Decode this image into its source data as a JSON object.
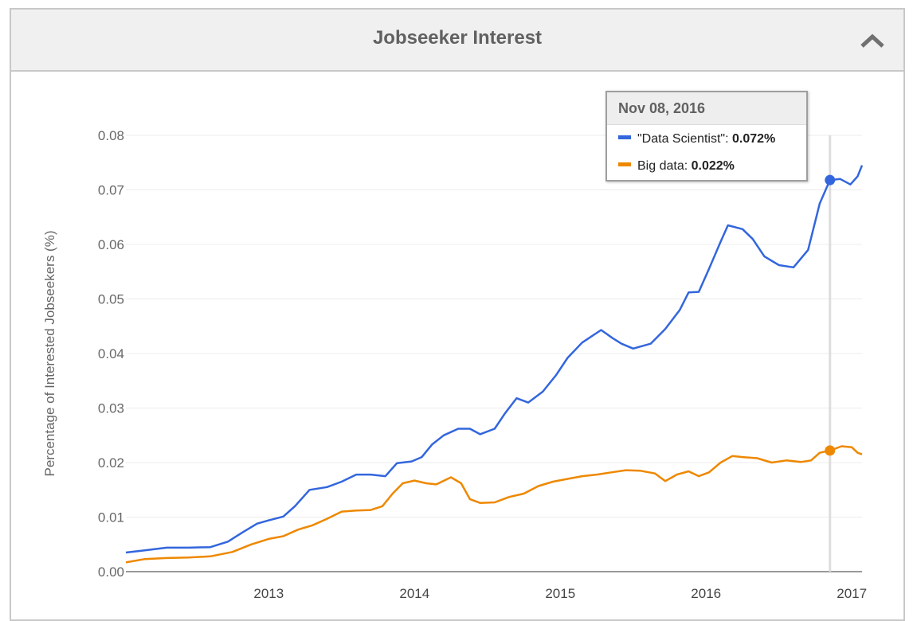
{
  "panel": {
    "title": "Jobseeker Interest",
    "collapse_icon": "chevron-up-icon"
  },
  "tooltip": {
    "date": "Nov 08, 2016",
    "rows": [
      {
        "name": "\"Data Scientist\"",
        "sep": ":",
        "value": "0.072%",
        "color": "#3366dd"
      },
      {
        "name": "Big data",
        "sep": ":",
        "value": "0.022%",
        "color": "#ee8800"
      }
    ]
  },
  "chart_data": {
    "type": "line",
    "ylabel": "Percentage of Interested Jobseekers (%)",
    "xlabel": "",
    "ylim": [
      0,
      0.08
    ],
    "yticks": [
      0.0,
      0.01,
      0.02,
      0.03,
      0.04,
      0.05,
      0.06,
      0.07,
      0.08
    ],
    "ytick_labels": [
      "0.00",
      "0.01",
      "0.02",
      "0.03",
      "0.04",
      "0.05",
      "0.06",
      "0.07",
      "0.08"
    ],
    "xlim": [
      2012.02,
      2017.07
    ],
    "xticks": [
      2013,
      2014,
      2015,
      2016,
      2017
    ],
    "xtick_labels": [
      "2013",
      "2014",
      "2015",
      "2016",
      "2017"
    ],
    "grid": true,
    "highlight_x": 2016.85,
    "series": [
      {
        "name": "\"Data Scientist\"",
        "color": "#3366dd",
        "points": [
          [
            2012.02,
            0.0035
          ],
          [
            2012.15,
            0.0039
          ],
          [
            2012.3,
            0.0044
          ],
          [
            2012.45,
            0.0044
          ],
          [
            2012.6,
            0.0045
          ],
          [
            2012.72,
            0.0055
          ],
          [
            2012.82,
            0.0072
          ],
          [
            2012.92,
            0.0088
          ],
          [
            2013.0,
            0.0094
          ],
          [
            2013.1,
            0.0101
          ],
          [
            2013.18,
            0.012
          ],
          [
            2013.28,
            0.015
          ],
          [
            2013.4,
            0.0155
          ],
          [
            2013.5,
            0.0165
          ],
          [
            2013.6,
            0.0178
          ],
          [
            2013.7,
            0.0178
          ],
          [
            2013.8,
            0.0175
          ],
          [
            2013.88,
            0.0199
          ],
          [
            2013.98,
            0.0202
          ],
          [
            2014.05,
            0.021
          ],
          [
            2014.12,
            0.0233
          ],
          [
            2014.2,
            0.025
          ],
          [
            2014.3,
            0.0262
          ],
          [
            2014.38,
            0.0262
          ],
          [
            2014.45,
            0.0252
          ],
          [
            2014.55,
            0.0262
          ],
          [
            2014.62,
            0.029
          ],
          [
            2014.7,
            0.0318
          ],
          [
            2014.78,
            0.031
          ],
          [
            2014.88,
            0.033
          ],
          [
            2014.97,
            0.036
          ],
          [
            2015.05,
            0.0392
          ],
          [
            2015.15,
            0.042
          ],
          [
            2015.28,
            0.0443
          ],
          [
            2015.36,
            0.0428
          ],
          [
            2015.42,
            0.0418
          ],
          [
            2015.5,
            0.0409
          ],
          [
            2015.62,
            0.0418
          ],
          [
            2015.72,
            0.0445
          ],
          [
            2015.82,
            0.048
          ],
          [
            2015.88,
            0.0512
          ],
          [
            2015.95,
            0.0513
          ],
          [
            2016.02,
            0.0555
          ],
          [
            2016.1,
            0.0605
          ],
          [
            2016.15,
            0.0635
          ],
          [
            2016.25,
            0.0628
          ],
          [
            2016.32,
            0.061
          ],
          [
            2016.4,
            0.0578
          ],
          [
            2016.5,
            0.0562
          ],
          [
            2016.6,
            0.0558
          ],
          [
            2016.7,
            0.059
          ],
          [
            2016.78,
            0.0675
          ],
          [
            2016.85,
            0.0718
          ],
          [
            2016.92,
            0.072
          ],
          [
            2016.99,
            0.071
          ],
          [
            2017.04,
            0.0725
          ],
          [
            2017.07,
            0.0745
          ]
        ]
      },
      {
        "name": "Big data",
        "color": "#ee8800",
        "points": [
          [
            2012.02,
            0.0017
          ],
          [
            2012.15,
            0.0023
          ],
          [
            2012.3,
            0.0025
          ],
          [
            2012.45,
            0.0026
          ],
          [
            2012.6,
            0.0028
          ],
          [
            2012.75,
            0.0036
          ],
          [
            2012.88,
            0.005
          ],
          [
            2013.0,
            0.006
          ],
          [
            2013.1,
            0.0065
          ],
          [
            2013.2,
            0.0077
          ],
          [
            2013.3,
            0.0085
          ],
          [
            2013.4,
            0.0097
          ],
          [
            2013.5,
            0.011
          ],
          [
            2013.6,
            0.0112
          ],
          [
            2013.7,
            0.0113
          ],
          [
            2013.78,
            0.012
          ],
          [
            2013.85,
            0.0143
          ],
          [
            2013.92,
            0.0162
          ],
          [
            2014.0,
            0.0167
          ],
          [
            2014.08,
            0.0162
          ],
          [
            2014.15,
            0.016
          ],
          [
            2014.25,
            0.0173
          ],
          [
            2014.32,
            0.0162
          ],
          [
            2014.38,
            0.0133
          ],
          [
            2014.45,
            0.0126
          ],
          [
            2014.55,
            0.0127
          ],
          [
            2014.65,
            0.0137
          ],
          [
            2014.75,
            0.0143
          ],
          [
            2014.85,
            0.0157
          ],
          [
            2014.95,
            0.0165
          ],
          [
            2015.05,
            0.017
          ],
          [
            2015.15,
            0.0175
          ],
          [
            2015.25,
            0.0178
          ],
          [
            2015.35,
            0.0182
          ],
          [
            2015.45,
            0.0186
          ],
          [
            2015.55,
            0.0185
          ],
          [
            2015.65,
            0.018
          ],
          [
            2015.72,
            0.0166
          ],
          [
            2015.8,
            0.0178
          ],
          [
            2015.88,
            0.0184
          ],
          [
            2015.95,
            0.0175
          ],
          [
            2016.02,
            0.0182
          ],
          [
            2016.1,
            0.02
          ],
          [
            2016.18,
            0.0212
          ],
          [
            2016.25,
            0.021
          ],
          [
            2016.35,
            0.0208
          ],
          [
            2016.45,
            0.02
          ],
          [
            2016.55,
            0.0204
          ],
          [
            2016.65,
            0.0201
          ],
          [
            2016.72,
            0.0204
          ],
          [
            2016.78,
            0.0218
          ],
          [
            2016.85,
            0.0222
          ],
          [
            2016.93,
            0.023
          ],
          [
            2017.0,
            0.0228
          ],
          [
            2017.04,
            0.0218
          ],
          [
            2017.07,
            0.0215
          ]
        ]
      }
    ]
  }
}
